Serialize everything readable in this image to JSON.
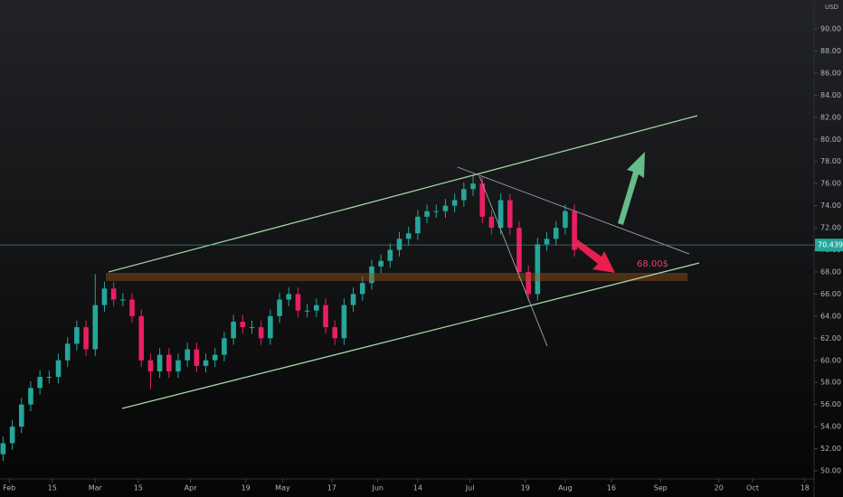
{
  "chart_data": {
    "type": "candlestick",
    "currency": "USD",
    "annotation": "68.00$",
    "last_price": 70.439,
    "up_color": "#26a69a",
    "down_color": "#e91e63",
    "price_line_color": "#26a69a",
    "x": [
      -2,
      1,
      4,
      7,
      10,
      13,
      16,
      19,
      22,
      25,
      28,
      31,
      34,
      37,
      40,
      43,
      46,
      49,
      52,
      55,
      58,
      61,
      64,
      67,
      70,
      73,
      76,
      79,
      82,
      85,
      88,
      91,
      94,
      97,
      100,
      103,
      106,
      109,
      112,
      115,
      118,
      121,
      124,
      127,
      130,
      133,
      136,
      139,
      142,
      145,
      148,
      151,
      154,
      157,
      160,
      163,
      166,
      169,
      172,
      175,
      178,
      181,
      184
    ],
    "open": [
      51.5,
      52.5,
      54,
      56,
      57.5,
      58.5,
      58.5,
      60,
      61.5,
      63,
      61,
      65,
      66.5,
      65.5,
      65.5,
      64,
      60,
      59,
      60.5,
      59,
      60,
      61,
      59.5,
      60,
      60.5,
      62,
      63.5,
      63,
      63,
      62,
      64,
      65.5,
      66,
      64.5,
      64.5,
      65,
      63,
      62,
      65,
      66,
      67,
      68.5,
      69,
      70,
      71,
      71.5,
      73,
      73.5,
      73.5,
      74,
      74.5,
      75.5,
      76,
      73,
      72,
      74.5,
      72,
      68,
      66,
      70.5,
      71,
      72,
      73.5
    ],
    "high": [
      53.1,
      54.6,
      56.6,
      58.1,
      59.1,
      59.1,
      60.6,
      62.1,
      63.6,
      63.6,
      67.8,
      67.1,
      67.1,
      66.1,
      66.1,
      64.6,
      60.6,
      61.1,
      61.1,
      60.6,
      61.6,
      61.6,
      60.6,
      61.1,
      62.6,
      64.1,
      64.1,
      63.6,
      63.6,
      64.6,
      66.1,
      66.6,
      66.6,
      65.1,
      65.6,
      65.6,
      63.6,
      65.6,
      66.6,
      67.6,
      69.1,
      69.6,
      70.6,
      71.6,
      72.1,
      73.6,
      74.1,
      74.1,
      74.6,
      75.1,
      76.1,
      76.8,
      76.6,
      73.6,
      75.1,
      75.1,
      72.6,
      68.6,
      71.1,
      71.6,
      72.6,
      74.1,
      74.1
    ],
    "low": [
      50.9,
      51.9,
      53.4,
      55.4,
      56.9,
      57.9,
      57.9,
      59.4,
      60.9,
      60.4,
      60.4,
      64.4,
      64.9,
      64.9,
      63.4,
      59.4,
      57.4,
      58.4,
      58.4,
      58.4,
      59.4,
      58.9,
      58.9,
      59.4,
      59.9,
      61.4,
      62.4,
      62.4,
      61.4,
      61.4,
      63.4,
      64.9,
      63.9,
      63.9,
      63.9,
      62.4,
      61.4,
      61.4,
      64.4,
      65.4,
      66.4,
      67.9,
      68.4,
      69.4,
      70.4,
      70.9,
      72.4,
      72.9,
      72.9,
      73.4,
      73.9,
      74.9,
      72.4,
      71.4,
      71.4,
      71.4,
      67.4,
      65.4,
      65.4,
      69.9,
      70.4,
      71.4,
      69.4
    ],
    "close": [
      52.5,
      54,
      56,
      57.5,
      58.5,
      58.5,
      60,
      61.5,
      63,
      61,
      65,
      66.5,
      65.5,
      65.5,
      64,
      60,
      59,
      60.5,
      59,
      60,
      61,
      59.5,
      60,
      60.5,
      62,
      63.5,
      63,
      63,
      62,
      64,
      65.5,
      66,
      64.5,
      64.5,
      65,
      63,
      62,
      65,
      66,
      67,
      68.5,
      69,
      70,
      71,
      71.5,
      73,
      73.5,
      73.5,
      74,
      74.5,
      75.5,
      76,
      73,
      72,
      74.5,
      72,
      68,
      66,
      70.5,
      71,
      72,
      73.5,
      70
    ],
    "xlim": [
      -3,
      262
    ],
    "xticks": [
      {
        "value": 0,
        "label": "Feb"
      },
      {
        "value": 14,
        "label": "15"
      },
      {
        "value": 28,
        "label": "Mar"
      },
      {
        "value": 42,
        "label": "15"
      },
      {
        "value": 59,
        "label": "Apr"
      },
      {
        "value": 77,
        "label": "19"
      },
      {
        "value": 89,
        "label": "May"
      },
      {
        "value": 105,
        "label": "17"
      },
      {
        "value": 120,
        "label": "Jun"
      },
      {
        "value": 133,
        "label": "14"
      },
      {
        "value": 150,
        "label": "Jul"
      },
      {
        "value": 168,
        "label": "19"
      },
      {
        "value": 181,
        "label": "Aug"
      },
      {
        "value": 196,
        "label": "16"
      },
      {
        "value": 212,
        "label": "Sep"
      },
      {
        "value": 231,
        "label": "20"
      },
      {
        "value": 242,
        "label": "Oct"
      },
      {
        "value": 259,
        "label": "18"
      }
    ],
    "ylim": [
      50,
      90
    ],
    "yticks": [
      {
        "value": 50,
        "label": "50.00"
      },
      {
        "value": 52,
        "label": "52.00"
      },
      {
        "value": 54,
        "label": "54.00"
      },
      {
        "value": 56,
        "label": "56.00"
      },
      {
        "value": 58,
        "label": "58.00"
      },
      {
        "value": 60,
        "label": "60.00"
      },
      {
        "value": 62,
        "label": "62.00"
      },
      {
        "value": 64,
        "label": "64.00"
      },
      {
        "value": 66,
        "label": "66.00"
      },
      {
        "value": 68,
        "label": "68.00"
      },
      {
        "value": 70,
        "label": "70.00"
      },
      {
        "value": 72,
        "label": "72.00"
      },
      {
        "value": 74,
        "label": "74.00"
      },
      {
        "value": 76,
        "label": "76.00"
      },
      {
        "value": 78,
        "label": "78.00"
      },
      {
        "value": 80,
        "label": "80.00"
      },
      {
        "value": 82,
        "label": "82.00"
      },
      {
        "value": 84,
        "label": "84.00"
      },
      {
        "value": 86,
        "label": "86.00"
      },
      {
        "value": 88,
        "label": "88.00"
      },
      {
        "value": 90,
        "label": "90.00"
      }
    ]
  }
}
